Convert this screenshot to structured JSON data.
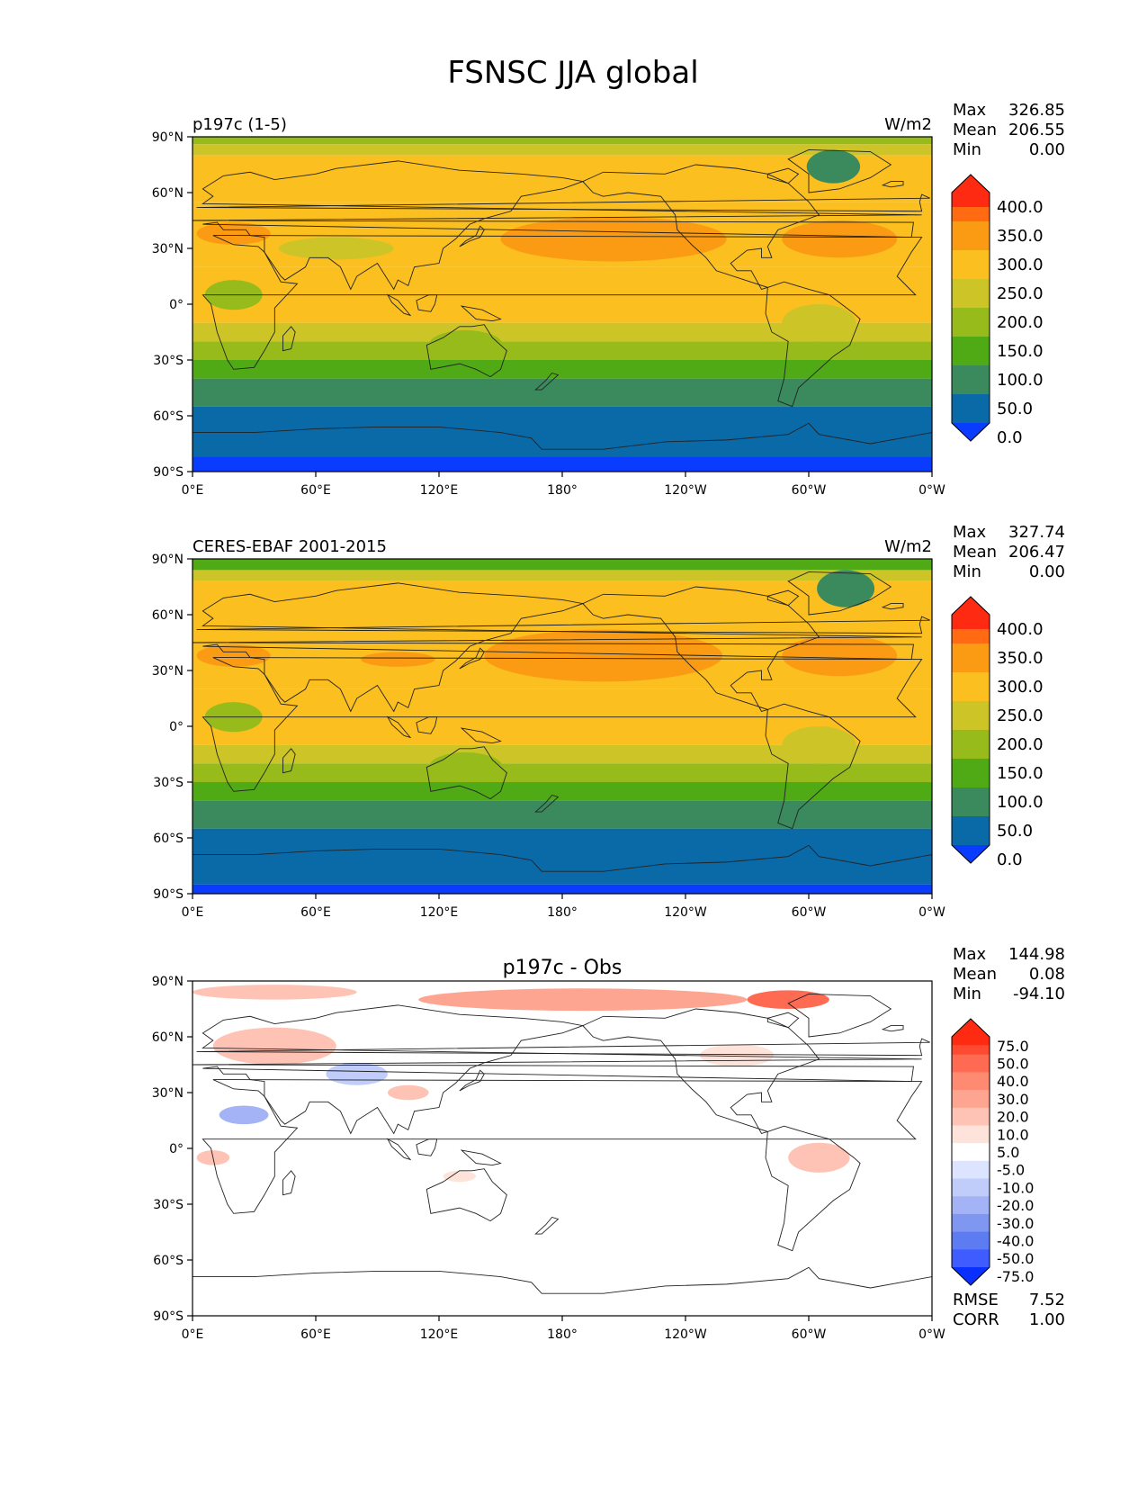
{
  "figure": {
    "title": "FSNSC JJA global"
  },
  "axes": {
    "lat_labels": [
      "90°N",
      "60°N",
      "30°N",
      "0°",
      "30°S",
      "60°S",
      "90°S"
    ],
    "lon_labels": [
      "0°E",
      "60°E",
      "120°E",
      "180°",
      "120°W",
      "60°W",
      "0°W"
    ]
  },
  "panels": [
    {
      "id": "test",
      "left_label": "p197c (1-5)",
      "center_label": "",
      "units": "W/m2",
      "stats": [
        {
          "label": "Max",
          "value": "326.85"
        },
        {
          "label": "Mean",
          "value": "206.55"
        },
        {
          "label": "Min",
          "value": "0.00"
        }
      ],
      "colorbar": {
        "labels": [
          "400.0",
          "350.0",
          "300.0",
          "250.0",
          "200.0",
          "150.0",
          "100.0",
          "50.0",
          "0.0"
        ],
        "colors": [
          "#ff2a12",
          "#ff6a12",
          "#fb9b14",
          "#fbbf1f",
          "#cdc528",
          "#98bb1c",
          "#4faa15",
          "#3a8a5e",
          "#0a6aa8",
          "#0a3cff"
        ]
      },
      "zones": [
        {
          "lat": [
            90,
            86
          ],
          "value": 150
        },
        {
          "lat": [
            86,
            80
          ],
          "value": 200
        },
        {
          "lat": [
            80,
            55
          ],
          "value": 275
        },
        {
          "lat": [
            55,
            20
          ],
          "value": 275
        },
        {
          "lat": [
            20,
            -10
          ],
          "value": 275
        },
        {
          "lat": [
            -10,
            -20
          ],
          "value": 225
        },
        {
          "lat": [
            -20,
            -30
          ],
          "value": 175
        },
        {
          "lat": [
            -30,
            -40
          ],
          "value": 125
        },
        {
          "lat": [
            -40,
            -55
          ],
          "value": 75
        },
        {
          "lat": [
            -55,
            -82
          ],
          "value": 25
        },
        {
          "lat": [
            -82,
            -90
          ],
          "value": -25
        }
      ],
      "blobs": [
        {
          "lon": 205,
          "lat": 35,
          "rx": 55,
          "ry": 12,
          "value": 325
        },
        {
          "lon": 315,
          "lat": 35,
          "rx": 28,
          "ry": 10,
          "value": 325
        },
        {
          "lon": 312,
          "lat": 74,
          "rx": 13,
          "ry": 9,
          "value": 75
        },
        {
          "lon": 20,
          "lat": 38,
          "rx": 18,
          "ry": 6,
          "value": 325
        },
        {
          "lon": 70,
          "lat": 30,
          "rx": 28,
          "ry": 6,
          "value": 225
        },
        {
          "lon": 20,
          "lat": 5,
          "rx": 14,
          "ry": 8,
          "value": 175
        },
        {
          "lon": 305,
          "lat": -10,
          "rx": 18,
          "ry": 10,
          "value": 225
        },
        {
          "lon": 133,
          "lat": -22,
          "rx": 18,
          "ry": 8,
          "value": 175
        }
      ]
    },
    {
      "id": "ref",
      "left_label": "CERES-EBAF 2001-2015",
      "center_label": "",
      "units": "W/m2",
      "stats": [
        {
          "label": "Max",
          "value": "327.74"
        },
        {
          "label": "Mean",
          "value": "206.47"
        },
        {
          "label": "Min",
          "value": "0.00"
        }
      ],
      "colorbar": {
        "labels": [
          "400.0",
          "350.0",
          "300.0",
          "250.0",
          "200.0",
          "150.0",
          "100.0",
          "50.0",
          "0.0"
        ],
        "colors": [
          "#ff2a12",
          "#ff6a12",
          "#fb9b14",
          "#fbbf1f",
          "#cdc528",
          "#98bb1c",
          "#4faa15",
          "#3a8a5e",
          "#0a6aa8",
          "#0a3cff"
        ]
      },
      "zones": [
        {
          "lat": [
            90,
            84
          ],
          "value": 125
        },
        {
          "lat": [
            84,
            78
          ],
          "value": 200
        },
        {
          "lat": [
            78,
            20
          ],
          "value": 275
        },
        {
          "lat": [
            20,
            -10
          ],
          "value": 275
        },
        {
          "lat": [
            -10,
            -20
          ],
          "value": 225
        },
        {
          "lat": [
            -20,
            -30
          ],
          "value": 175
        },
        {
          "lat": [
            -30,
            -40
          ],
          "value": 125
        },
        {
          "lat": [
            -40,
            -55
          ],
          "value": 75
        },
        {
          "lat": [
            -55,
            -85
          ],
          "value": 25
        },
        {
          "lat": [
            -85,
            -90
          ],
          "value": -25
        }
      ],
      "blobs": [
        {
          "lon": 200,
          "lat": 38,
          "rx": 58,
          "ry": 14,
          "value": 325
        },
        {
          "lon": 315,
          "lat": 38,
          "rx": 28,
          "ry": 11,
          "value": 325
        },
        {
          "lon": 318,
          "lat": 74,
          "rx": 14,
          "ry": 10,
          "value": 75
        },
        {
          "lon": 20,
          "lat": 38,
          "rx": 18,
          "ry": 6,
          "value": 325
        },
        {
          "lon": 100,
          "lat": 36,
          "rx": 18,
          "ry": 4,
          "value": 325
        },
        {
          "lon": 20,
          "lat": 5,
          "rx": 14,
          "ry": 8,
          "value": 175
        },
        {
          "lon": 305,
          "lat": -10,
          "rx": 18,
          "ry": 10,
          "value": 225
        },
        {
          "lon": 133,
          "lat": -22,
          "rx": 18,
          "ry": 8,
          "value": 175
        }
      ]
    },
    {
      "id": "diff",
      "left_label": "",
      "center_label": "p197c - Obs",
      "units": "",
      "stats": [
        {
          "label": "Max",
          "value": "144.98"
        },
        {
          "label": "Mean",
          "value": "0.08"
        },
        {
          "label": "Min",
          "value": "-94.10"
        }
      ],
      "extra_stats": [
        {
          "label": "RMSE",
          "value": "7.52"
        },
        {
          "label": "CORR",
          "value": "1.00"
        }
      ],
      "colorbar": {
        "labels": [
          "75.0",
          "50.0",
          "40.0",
          "30.0",
          "20.0",
          "10.0",
          "5.0",
          "-5.0",
          "-10.0",
          "-20.0",
          "-30.0",
          "-40.0",
          "-50.0",
          "-75.0"
        ],
        "colors": [
          "#ff2a12",
          "#ff4a32",
          "#fe6a52",
          "#fe8a72",
          "#fea592",
          "#fec3b5",
          "#fee3da",
          "#ffffff",
          "#dde4ff",
          "#c0ccfa",
          "#a3b3f5",
          "#8097f2",
          "#5e7cf2",
          "#3e5cff",
          "#0a30ff"
        ]
      },
      "zones": [
        {
          "lat": [
            90,
            -90
          ],
          "value": 0
        }
      ],
      "blobs": [
        {
          "lon": 40,
          "lat": 84,
          "rx": 40,
          "ry": 4,
          "value": 15
        },
        {
          "lon": 190,
          "lat": 80,
          "rx": 80,
          "ry": 6,
          "value": 25
        },
        {
          "lon": 290,
          "lat": 80,
          "rx": 20,
          "ry": 5,
          "value": 45
        },
        {
          "lon": 40,
          "lat": 55,
          "rx": 30,
          "ry": 10,
          "value": 15
        },
        {
          "lon": 80,
          "lat": 40,
          "rx": 15,
          "ry": 6,
          "value": -15
        },
        {
          "lon": 25,
          "lat": 18,
          "rx": 12,
          "ry": 5,
          "value": -25
        },
        {
          "lon": 10,
          "lat": -5,
          "rx": 8,
          "ry": 4,
          "value": 15
        },
        {
          "lon": 305,
          "lat": -5,
          "rx": 15,
          "ry": 8,
          "value": 15
        },
        {
          "lon": 265,
          "lat": 50,
          "rx": 18,
          "ry": 6,
          "value": 8
        },
        {
          "lon": 130,
          "lat": -15,
          "rx": 8,
          "ry": 3,
          "value": 8
        },
        {
          "lon": 105,
          "lat": 30,
          "rx": 10,
          "ry": 4,
          "value": 10
        }
      ]
    }
  ]
}
